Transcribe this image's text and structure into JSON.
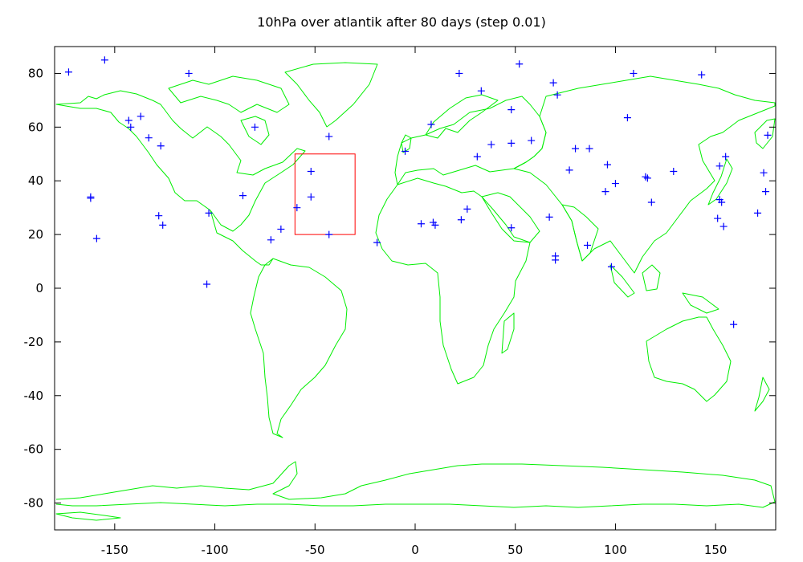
{
  "chart_data": {
    "type": "scatter",
    "title": "10hPa over atlantik after 80 days (step 0.01)",
    "xlabel": "",
    "ylabel": "",
    "xlim": [
      -180,
      180
    ],
    "ylim": [
      -90,
      90
    ],
    "xticks": [
      -150,
      -100,
      -50,
      0,
      50,
      100,
      150
    ],
    "yticks": [
      80,
      60,
      40,
      20,
      0,
      -20,
      -40,
      -60,
      -80
    ],
    "grid": false,
    "legend": "none",
    "colors": {
      "points": "#0000ff",
      "coastline": "#00ee00",
      "region": "#ff0000",
      "axes": "#000000"
    },
    "region_box": {
      "x": [
        -60,
        -30
      ],
      "y": [
        20,
        50
      ]
    },
    "points": [
      {
        "x": -173,
        "y": 80.5
      },
      {
        "x": -155,
        "y": 85
      },
      {
        "x": -113,
        "y": 80
      },
      {
        "x": 22,
        "y": 80
      },
      {
        "x": 52,
        "y": 83.5
      },
      {
        "x": 69,
        "y": 76.5
      },
      {
        "x": 109,
        "y": 80
      },
      {
        "x": 143,
        "y": 79.5
      },
      {
        "x": 33,
        "y": 73.5
      },
      {
        "x": 71,
        "y": 72
      },
      {
        "x": -143,
        "y": 62.5
      },
      {
        "x": -137,
        "y": 64
      },
      {
        "x": -142,
        "y": 60
      },
      {
        "x": -133,
        "y": 56
      },
      {
        "x": -127,
        "y": 53
      },
      {
        "x": -80,
        "y": 60
      },
      {
        "x": -43,
        "y": 56.5
      },
      {
        "x": 8,
        "y": 61
      },
      {
        "x": 48,
        "y": 66.5
      },
      {
        "x": 106,
        "y": 63.5
      },
      {
        "x": -5,
        "y": 51
      },
      {
        "x": 31,
        "y": 49
      },
      {
        "x": 38,
        "y": 53.5
      },
      {
        "x": 48,
        "y": 54
      },
      {
        "x": 58,
        "y": 55
      },
      {
        "x": 80,
        "y": 52
      },
      {
        "x": 87,
        "y": 52
      },
      {
        "x": 77,
        "y": 44
      },
      {
        "x": 96,
        "y": 46
      },
      {
        "x": 115,
        "y": 41.5
      },
      {
        "x": 116,
        "y": 41
      },
      {
        "x": 100,
        "y": 39
      },
      {
        "x": 95,
        "y": 36
      },
      {
        "x": 118,
        "y": 32
      },
      {
        "x": 129,
        "y": 43.5
      },
      {
        "x": 152,
        "y": 45.5
      },
      {
        "x": 155,
        "y": 49
      },
      {
        "x": 176,
        "y": 57
      },
      {
        "x": 174,
        "y": 43
      },
      {
        "x": 175,
        "y": 36
      },
      {
        "x": 152,
        "y": 33
      },
      {
        "x": 153,
        "y": 32
      },
      {
        "x": 151,
        "y": 26
      },
      {
        "x": 154,
        "y": 23
      },
      {
        "x": 171,
        "y": 28
      },
      {
        "x": -162,
        "y": 34
      },
      {
        "x": -162,
        "y": 33.5
      },
      {
        "x": -159,
        "y": 18.5
      },
      {
        "x": -128,
        "y": 27
      },
      {
        "x": -126,
        "y": 23.5
      },
      {
        "x": -86,
        "y": 34.5
      },
      {
        "x": -103,
        "y": 28
      },
      {
        "x": -104,
        "y": 1.5
      },
      {
        "x": -67,
        "y": 22
      },
      {
        "x": -72,
        "y": 18
      },
      {
        "x": -52,
        "y": 43.5
      },
      {
        "x": -52,
        "y": 34
      },
      {
        "x": -59,
        "y": 30
      },
      {
        "x": -43,
        "y": 20
      },
      {
        "x": -19,
        "y": 17
      },
      {
        "x": 3,
        "y": 24
      },
      {
        "x": 9,
        "y": 24.5
      },
      {
        "x": 10,
        "y": 23.5
      },
      {
        "x": 23,
        "y": 25.5
      },
      {
        "x": 26,
        "y": 29.5
      },
      {
        "x": 48,
        "y": 22.5
      },
      {
        "x": 67,
        "y": 26.5
      },
      {
        "x": 70,
        "y": 12
      },
      {
        "x": 70,
        "y": 10.5
      },
      {
        "x": 86,
        "y": 16
      },
      {
        "x": 98,
        "y": 8
      },
      {
        "x": 159,
        "y": -13.5
      }
    ]
  }
}
